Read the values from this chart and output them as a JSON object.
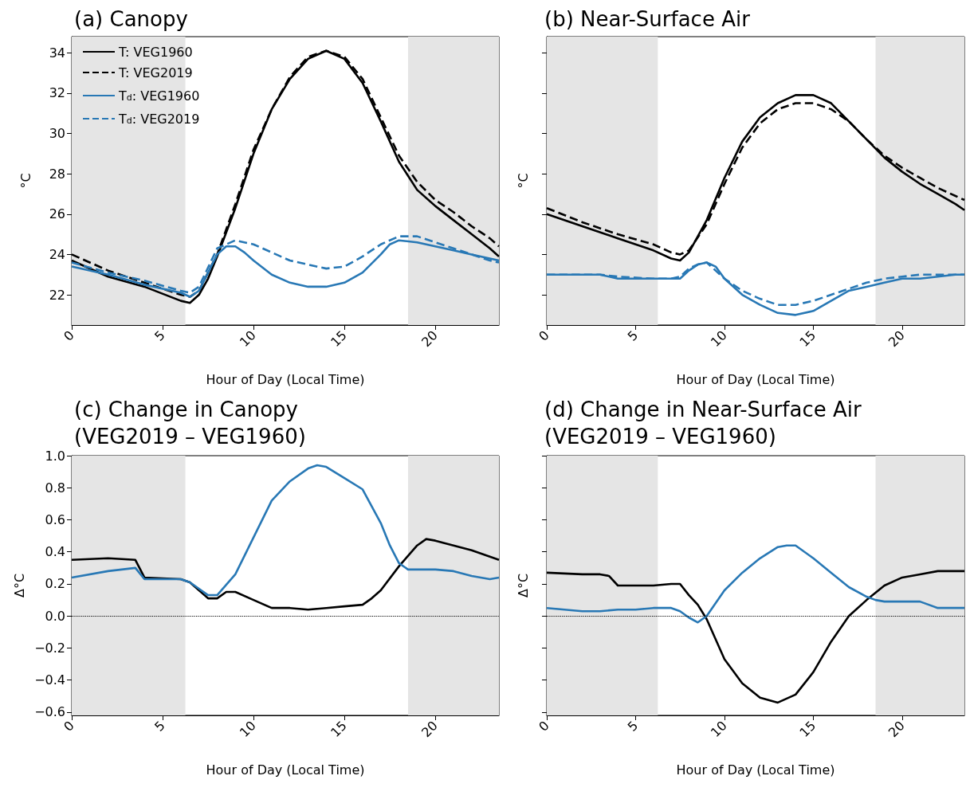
{
  "chart_data": [
    {
      "type": "line",
      "title": "(a) Canopy",
      "xlabel": "Hour of Day (Local Time)",
      "ylabel": "°C",
      "xlim": [
        0,
        23.5
      ],
      "xticks": [
        0,
        5,
        10,
        15,
        20
      ],
      "ylim": [
        20.5,
        34.8
      ],
      "yticks": [
        22,
        24,
        26,
        28,
        30,
        32,
        34
      ],
      "grid": false,
      "legend": "top left",
      "bands": [
        {
          "axis": "x",
          "from": 0,
          "to": 6.25,
          "color": "#e5e5e5"
        },
        {
          "axis": "x",
          "from": 18.5,
          "to": 23.5,
          "color": "#e5e5e5"
        }
      ],
      "series": [
        {
          "name": "T: VEG1960",
          "color": "#000000",
          "line_style": "solid",
          "x": [
            0,
            2,
            4,
            6,
            6.5,
            7,
            7.5,
            8,
            9,
            10,
            11,
            12,
            13,
            14,
            15,
            16,
            17,
            18,
            19,
            20,
            21,
            22,
            23,
            23.5
          ],
          "values": [
            23.7,
            22.9,
            22.4,
            21.7,
            21.6,
            22.0,
            22.8,
            23.9,
            26.3,
            29.0,
            31.2,
            32.7,
            33.7,
            34.1,
            33.7,
            32.5,
            30.6,
            28.6,
            27.2,
            26.4,
            25.7,
            25.0,
            24.3,
            23.9
          ]
        },
        {
          "name": "T: VEG2019",
          "color": "#000000",
          "line_style": "dashed",
          "x": [
            0,
            2,
            4,
            6,
            6.5,
            7,
            8,
            9,
            10,
            11,
            12,
            13,
            14,
            15,
            16,
            17,
            18,
            19,
            20,
            21,
            22,
            23,
            23.5
          ],
          "values": [
            24.0,
            23.2,
            22.6,
            22.0,
            21.9,
            22.2,
            24.0,
            26.5,
            29.2,
            31.2,
            32.8,
            33.8,
            34.1,
            33.8,
            32.7,
            30.8,
            28.9,
            27.6,
            26.7,
            26.1,
            25.4,
            24.8,
            24.4
          ]
        },
        {
          "name": "T$_{d}$: VEG1960",
          "color": "#2878b5",
          "line_style": "solid",
          "x": [
            0,
            2,
            4,
            6,
            6.5,
            7,
            7.5,
            8,
            8.5,
            9,
            9.5,
            10,
            11,
            12,
            13,
            14,
            15,
            16,
            17,
            17.5,
            18,
            19,
            20,
            21,
            22,
            23,
            23.5
          ],
          "values": [
            23.4,
            23.0,
            22.5,
            22.1,
            21.9,
            22.2,
            23.1,
            24.0,
            24.4,
            24.4,
            24.1,
            23.7,
            23.0,
            22.6,
            22.4,
            22.4,
            22.6,
            23.1,
            24.0,
            24.5,
            24.7,
            24.6,
            24.4,
            24.2,
            24.0,
            23.8,
            23.7
          ]
        },
        {
          "name": "T$_{d}$: VEG2019",
          "color": "#2878b5",
          "line_style": "dashed",
          "x": [
            0,
            2,
            4,
            6,
            6.5,
            7,
            8,
            9,
            10,
            11,
            12,
            13,
            14,
            15,
            16,
            17,
            18,
            19,
            20,
            21,
            22,
            23,
            23.5
          ],
          "values": [
            23.6,
            23.1,
            22.7,
            22.2,
            22.1,
            22.4,
            24.3,
            24.7,
            24.5,
            24.1,
            23.7,
            23.5,
            23.3,
            23.4,
            23.9,
            24.5,
            24.9,
            24.9,
            24.6,
            24.3,
            24.0,
            23.7,
            23.6
          ]
        }
      ]
    },
    {
      "type": "line",
      "title": "(b) Near-Surface Air",
      "xlabel": "Hour of Day (Local Time)",
      "ylabel": "°C",
      "xlim": [
        0,
        23.5
      ],
      "xticks": [
        0,
        5,
        10,
        15,
        20
      ],
      "ylim": [
        20.5,
        34.8
      ],
      "yticks": [
        22,
        24,
        26,
        28,
        30,
        32,
        34
      ],
      "grid": false,
      "tick_labels": "x",
      "bands": [
        {
          "axis": "x",
          "from": 0,
          "to": 6.25,
          "color": "#e5e5e5"
        },
        {
          "axis": "x",
          "from": 18.5,
          "to": 23.5,
          "color": "#e5e5e5"
        }
      ],
      "series": [
        {
          "color": "#000000",
          "line_style": "solid",
          "x": [
            0,
            2,
            4,
            6,
            7,
            7.5,
            8,
            9,
            10,
            11,
            12,
            13,
            14,
            15,
            16,
            17,
            18,
            19,
            20,
            21,
            22,
            23,
            23.5
          ],
          "values": [
            26.0,
            25.4,
            24.8,
            24.2,
            23.8,
            23.7,
            24.1,
            25.7,
            27.8,
            29.6,
            30.8,
            31.5,
            31.9,
            31.9,
            31.5,
            30.6,
            29.7,
            28.8,
            28.1,
            27.5,
            27.0,
            26.5,
            26.2
          ]
        },
        {
          "color": "#000000",
          "line_style": "dashed",
          "x": [
            0,
            2,
            4,
            6,
            7,
            7.5,
            8,
            9,
            10,
            11,
            12,
            13,
            14,
            15,
            16,
            17,
            18,
            19,
            20,
            21,
            22,
            23,
            23.5
          ],
          "values": [
            26.3,
            25.6,
            25.0,
            24.5,
            24.1,
            24.0,
            24.2,
            25.5,
            27.5,
            29.3,
            30.5,
            31.2,
            31.5,
            31.5,
            31.2,
            30.6,
            29.7,
            28.9,
            28.3,
            27.8,
            27.3,
            26.9,
            26.7
          ]
        },
        {
          "color": "#2878b5",
          "line_style": "solid",
          "x": [
            0,
            3,
            4,
            6,
            7,
            7.5,
            8,
            8.5,
            9,
            9.5,
            10,
            11,
            12,
            13,
            14,
            15,
            16,
            17,
            18,
            19,
            20,
            21,
            22,
            23,
            23.5
          ],
          "values": [
            23.0,
            23.0,
            22.8,
            22.8,
            22.8,
            22.8,
            23.2,
            23.5,
            23.6,
            23.4,
            22.8,
            22.0,
            21.5,
            21.1,
            21.0,
            21.2,
            21.7,
            22.2,
            22.4,
            22.6,
            22.8,
            22.8,
            22.9,
            23.0,
            23.0
          ]
        },
        {
          "color": "#2878b5",
          "line_style": "dashed",
          "x": [
            0,
            3,
            4,
            6,
            7,
            7.5,
            8,
            8.5,
            9,
            9.5,
            10,
            11,
            12,
            13,
            14,
            15,
            16,
            17,
            18,
            19,
            20,
            21,
            22,
            23,
            23.5
          ],
          "values": [
            23.0,
            23.0,
            22.9,
            22.8,
            22.8,
            22.9,
            23.3,
            23.5,
            23.6,
            23.2,
            22.8,
            22.2,
            21.8,
            21.5,
            21.5,
            21.7,
            22.0,
            22.3,
            22.6,
            22.8,
            22.9,
            23.0,
            23.0,
            23.0,
            23.0
          ]
        }
      ]
    },
    {
      "type": "line",
      "title": "(c) Change in Canopy\n(VEG2019 – VEG1960)",
      "xlabel": "Hour of Day (Local Time)",
      "ylabel": "Δ°C",
      "xlim": [
        0,
        23.5
      ],
      "xticks": [
        0,
        5,
        10,
        15,
        20
      ],
      "ylim": [
        -0.62,
        1.0
      ],
      "yticks": [
        {
          "value": -0.6,
          "label": "−0.6"
        },
        {
          "value": -0.4,
          "label": "−0.4"
        },
        {
          "value": -0.2,
          "label": "−0.2"
        },
        {
          "value": 0,
          "label": "0.0"
        },
        0.2,
        0.4,
        0.6,
        0.8,
        {
          "value": 1,
          "label": "1.0"
        }
      ],
      "grid": false,
      "bands": [
        {
          "axis": "x",
          "from": 0,
          "to": 6.25,
          "color": "#e5e5e5"
        },
        {
          "axis": "x",
          "from": 18.5,
          "to": 23.5,
          "color": "#e5e5e5"
        }
      ],
      "ref_lines": [
        {
          "axis": "y",
          "value": 0,
          "color": "#000000",
          "line_style": "dotted"
        }
      ],
      "series": [
        {
          "color": "#000000",
          "line_style": "solid",
          "x": [
            0,
            2,
            3.5,
            4,
            6,
            6.5,
            7,
            7.5,
            8,
            8.5,
            9,
            10,
            11,
            12,
            13,
            14,
            15,
            16,
            16.5,
            17,
            18,
            19,
            19.5,
            20,
            21,
            22,
            23,
            23.5
          ],
          "values": [
            0.35,
            0.36,
            0.35,
            0.24,
            0.23,
            0.21,
            0.16,
            0.11,
            0.11,
            0.15,
            0.15,
            0.1,
            0.05,
            0.05,
            0.04,
            0.05,
            0.06,
            0.07,
            0.11,
            0.16,
            0.31,
            0.44,
            0.48,
            0.47,
            0.44,
            0.41,
            0.37,
            0.35
          ]
        },
        {
          "color": "#2878b5",
          "line_style": "solid",
          "x": [
            0,
            2,
            3.5,
            4,
            6,
            6.5,
            7,
            7.5,
            8,
            9,
            10,
            11,
            12,
            13,
            13.5,
            14,
            15,
            16,
            17,
            17.5,
            18,
            18.5,
            19,
            20,
            21,
            22,
            23,
            23.5
          ],
          "values": [
            0.24,
            0.28,
            0.3,
            0.23,
            0.23,
            0.21,
            0.17,
            0.13,
            0.13,
            0.26,
            0.49,
            0.72,
            0.84,
            0.92,
            0.94,
            0.93,
            0.86,
            0.79,
            0.58,
            0.44,
            0.33,
            0.29,
            0.29,
            0.29,
            0.28,
            0.25,
            0.23,
            0.24
          ]
        }
      ]
    },
    {
      "type": "line",
      "title": "(d) Change in Near-Surface Air\n(VEG2019 – VEG1960)",
      "xlabel": "Hour of Day (Local Time)",
      "ylabel": "Δ°C",
      "xlim": [
        0,
        23.5
      ],
      "xticks": [
        0,
        5,
        10,
        15,
        20
      ],
      "ylim": [
        -0.62,
        1.0
      ],
      "yticks": [
        -0.6,
        -0.4,
        -0.2,
        0,
        0.2,
        0.4,
        0.6,
        0.8,
        1
      ],
      "grid": false,
      "tick_labels": "x",
      "bands": [
        {
          "axis": "x",
          "from": 0,
          "to": 6.25,
          "color": "#e5e5e5"
        },
        {
          "axis": "x",
          "from": 18.5,
          "to": 23.5,
          "color": "#e5e5e5"
        }
      ],
      "ref_lines": [
        {
          "axis": "y",
          "value": 0,
          "color": "#000000",
          "line_style": "dotted"
        }
      ],
      "series": [
        {
          "color": "#000000",
          "line_style": "solid",
          "x": [
            0,
            2,
            3,
            3.5,
            4,
            6,
            7,
            7.5,
            8,
            8.5,
            9,
            10,
            11,
            12,
            13,
            14,
            15,
            16,
            17,
            18,
            19,
            20,
            21,
            22,
            23,
            23.5
          ],
          "values": [
            0.27,
            0.26,
            0.26,
            0.25,
            0.19,
            0.19,
            0.2,
            0.2,
            0.13,
            0.07,
            -0.02,
            -0.27,
            -0.42,
            -0.51,
            -0.54,
            -0.49,
            -0.35,
            -0.16,
            0.0,
            0.1,
            0.19,
            0.24,
            0.26,
            0.28,
            0.28,
            0.28
          ]
        },
        {
          "color": "#2878b5",
          "line_style": "solid",
          "x": [
            0,
            1,
            2,
            3,
            4,
            5,
            6,
            7,
            7.5,
            8,
            8.5,
            9,
            10,
            11,
            12,
            13,
            13.5,
            14,
            15,
            16,
            17,
            18,
            18.5,
            19,
            20,
            21,
            22,
            23,
            23.5
          ],
          "values": [
            0.05,
            0.04,
            0.03,
            0.03,
            0.04,
            0.04,
            0.05,
            0.05,
            0.03,
            -0.01,
            -0.04,
            0.0,
            0.16,
            0.27,
            0.36,
            0.43,
            0.44,
            0.44,
            0.36,
            0.27,
            0.18,
            0.12,
            0.1,
            0.09,
            0.09,
            0.09,
            0.05,
            0.05,
            0.05
          ]
        }
      ]
    }
  ]
}
